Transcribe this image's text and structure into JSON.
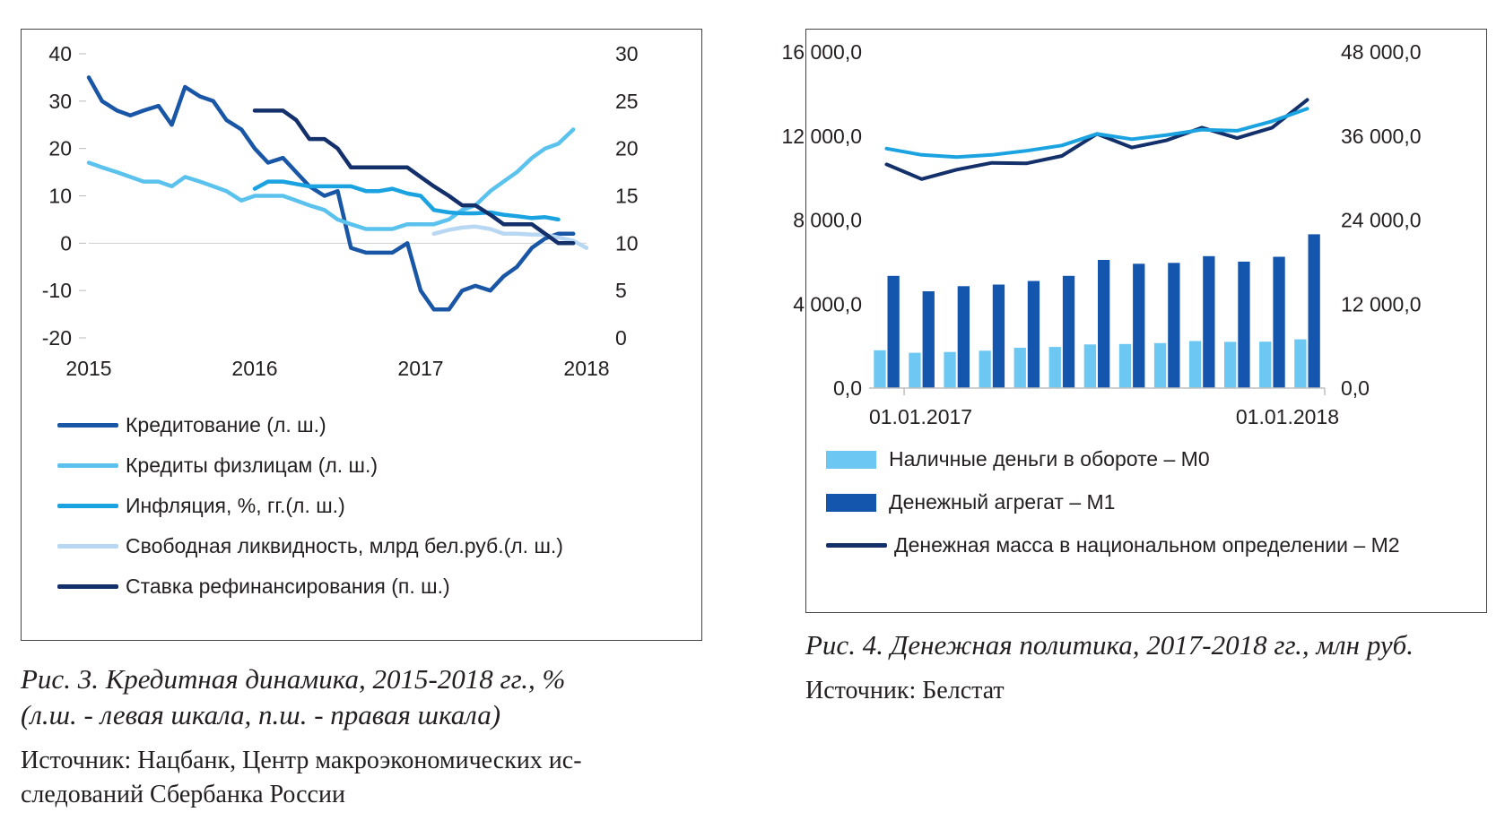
{
  "figure3": {
    "caption_line1": "Рис. 3. Кредитная динамика, 2015-2018 гг., %",
    "caption_line2": "(л.ш. - левая шкала, п.ш. - правая шкала)",
    "source_line1": "Источник: Нацбанк, Центр макроэкономических ис-",
    "source_line2": "следований Сбербанка России"
  },
  "figure4": {
    "caption": "Рис. 4. Денежная политика, 2017-2018 гг., млн руб.",
    "source": "Источник: Белстат"
  },
  "chart_data": [
    {
      "type": "line",
      "grid": false,
      "x_tick_labels": [
        "2015",
        "2016",
        "2017",
        "2018"
      ],
      "x": [
        2015.0,
        2015.08,
        2015.17,
        2015.25,
        2015.33,
        2015.42,
        2015.5,
        2015.58,
        2015.67,
        2015.75,
        2015.83,
        2015.92,
        2016.0,
        2016.08,
        2016.17,
        2016.25,
        2016.33,
        2016.42,
        2016.5,
        2016.58,
        2016.67,
        2016.75,
        2016.83,
        2016.92,
        2017.0,
        2017.08,
        2017.17,
        2017.25,
        2017.33,
        2017.42,
        2017.5,
        2017.58,
        2017.67,
        2017.75,
        2017.83,
        2017.92,
        2018.0
      ],
      "y_left": {
        "min": -20,
        "max": 40,
        "ticks": [
          40,
          30,
          20,
          10,
          0,
          -10,
          -20
        ]
      },
      "y_right": {
        "min": 0,
        "max": 30,
        "ticks": [
          30,
          25,
          20,
          15,
          10,
          5,
          0
        ]
      },
      "legend_position": "bottom",
      "series": [
        {
          "name": "Кредитование (л. ш.)",
          "axis": "left",
          "color": "#1a56a6",
          "legend_style": "line",
          "values": [
            35,
            30,
            28,
            27,
            28,
            29,
            25,
            33,
            31,
            30,
            26,
            24,
            20,
            17,
            18,
            15,
            12,
            10,
            11,
            -1,
            -2,
            -2,
            -2,
            0,
            -10,
            -14,
            -14,
            -10,
            -9,
            -10,
            -7,
            -5,
            -1,
            1,
            2,
            2,
            null
          ]
        },
        {
          "name": "Кредиты физлицам (л. ш.)",
          "axis": "left",
          "color": "#5bc2ee",
          "legend_style": "line",
          "values": [
            17,
            16,
            15,
            14,
            13,
            13,
            12,
            14,
            13,
            12,
            11,
            9,
            10,
            10,
            10,
            9,
            8,
            7,
            5,
            4,
            3,
            3,
            3,
            4,
            4,
            4,
            5,
            7,
            8,
            11,
            13,
            15,
            18,
            20,
            21,
            24,
            null
          ]
        },
        {
          "name": "Инфляция, %, гг.(л. ш.)",
          "axis": "left",
          "color": "#1aa3e0",
          "legend_style": "line",
          "values": [
            null,
            null,
            null,
            null,
            null,
            null,
            null,
            null,
            null,
            null,
            null,
            null,
            11.5,
            13,
            13,
            12.5,
            12,
            12,
            12,
            12,
            11,
            11,
            11.5,
            10.5,
            10,
            7,
            6.5,
            6.3,
            6.3,
            6.5,
            6,
            5.7,
            5.3,
            5.5,
            5,
            null,
            null
          ]
        },
        {
          "name": "Свободная ликвидность, млрд бел.руб.(л. ш.)",
          "axis": "left",
          "color": "#b8d7f2",
          "legend_style": "line",
          "values": [
            null,
            null,
            null,
            null,
            null,
            null,
            null,
            null,
            null,
            null,
            null,
            null,
            null,
            null,
            null,
            null,
            null,
            null,
            null,
            null,
            null,
            null,
            null,
            null,
            null,
            2,
            2.8,
            3.3,
            3.5,
            3,
            2,
            2,
            1.8,
            1.8,
            1.2,
            0.5,
            -1
          ]
        },
        {
          "name": "Ставка рефинансирования (п. ш.)",
          "axis": "right",
          "color": "#13306a",
          "legend_style": "line",
          "values": [
            null,
            null,
            null,
            null,
            null,
            null,
            null,
            null,
            null,
            null,
            null,
            null,
            24,
            24,
            24,
            23,
            21,
            21,
            20,
            18,
            18,
            18,
            18,
            18,
            17,
            16,
            15,
            14,
            14,
            13,
            12,
            12,
            12,
            11,
            10,
            10,
            null
          ]
        }
      ]
    },
    {
      "type": "bar",
      "grid": false,
      "x_tick_labels": [
        "01.01.2017",
        "01.01.2018"
      ],
      "categories": [
        "2017-01",
        "2017-02",
        "2017-03",
        "2017-04",
        "2017-05",
        "2017-06",
        "2017-07",
        "2017-08",
        "2017-09",
        "2017-10",
        "2017-11",
        "2017-12",
        "2018-01"
      ],
      "y_left": {
        "min": 0,
        "max": 16000,
        "tick_labels": [
          "16 000,0",
          "12 000,0",
          "8 000,0",
          "4 000,0",
          "0,0"
        ],
        "ticks": [
          16000,
          12000,
          8000,
          4000,
          0
        ]
      },
      "y_right": {
        "min": 0,
        "max": 48000,
        "tick_labels": [
          "48 000,0",
          "36 000,0",
          "24 000,0",
          "12 000,0",
          "0,0"
        ],
        "ticks": [
          48000,
          36000,
          24000,
          12000,
          0
        ]
      },
      "legend_position": "bottom",
      "series": [
        {
          "name": "Наличные деньги в обороте – М0",
          "type": "bar",
          "axis": "left",
          "color": "#6cc8f2",
          "legend_style": "box",
          "values": [
            1800,
            1680,
            1720,
            1780,
            1920,
            1960,
            2080,
            2100,
            2140,
            2240,
            2200,
            2210,
            2320
          ]
        },
        {
          "name": "Денежный агрегат – М1",
          "type": "bar",
          "axis": "left",
          "color": "#1456ad",
          "legend_style": "box",
          "values": [
            5340,
            4610,
            4850,
            4930,
            5100,
            5340,
            6100,
            5920,
            5960,
            6280,
            6020,
            6250,
            7320
          ]
        },
        {
          "name": "Денежная масса в национальном определении – М2",
          "type": "line",
          "axis": "left",
          "color": "#13306a",
          "legend_style": "line",
          "values": [
            10650,
            9950,
            10400,
            10720,
            10700,
            11050,
            12100,
            11450,
            11800,
            12400,
            11900,
            12400,
            13720
          ]
        },
        {
          "name": "",
          "type": "line",
          "axis": "left",
          "color": "#1aa3e0",
          "legend_style": "none",
          "values": [
            11400,
            11100,
            11000,
            11100,
            11300,
            11550,
            12100,
            11850,
            12050,
            12300,
            12250,
            12700,
            13300
          ]
        }
      ]
    }
  ]
}
